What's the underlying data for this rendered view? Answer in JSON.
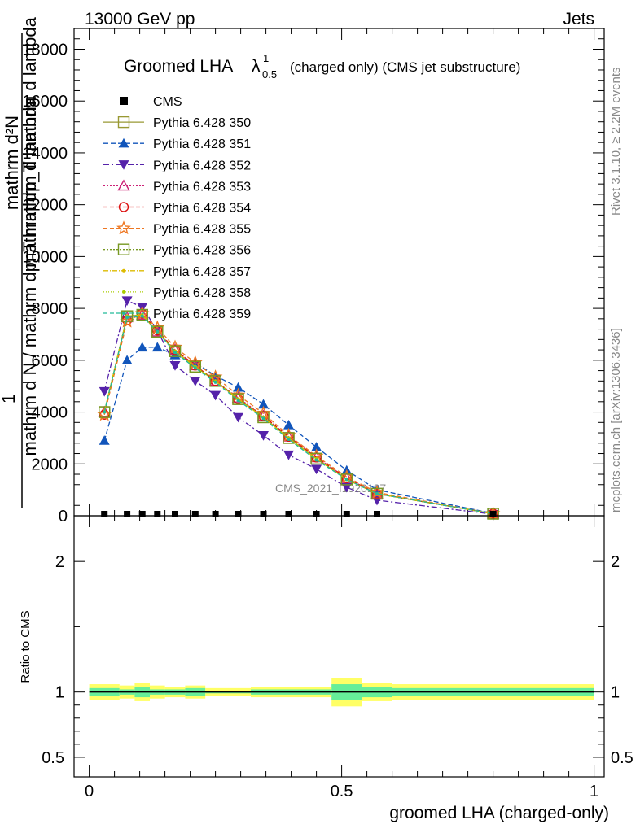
{
  "header": {
    "left": "13000 GeV pp",
    "right": "Jets",
    "rivet": "Rivet 3.1.10, ≥ 2.2M events",
    "mcplots": "mcplots.cern.ch [arXiv:1306.3436]",
    "watermark": "CMS_2021_I1920187"
  },
  "title": {
    "main": "Groomed LHA",
    "lambda": "λ",
    "sup": "1",
    "sub": "0.5",
    "rest": "(charged only) (CMS jet substructure)"
  },
  "ylabel_top": {
    "one": "1",
    "numerator": "mathrm d²N",
    "den1": "mathrm d N / mathrm dp_T mathrm d lambda",
    "den2": "mathrm dp_T mathrm d lambda"
  },
  "ylabel_ratio": "Ratio to CMS",
  "xlabel": "groomed LHA (charged-only)",
  "colors": {
    "cms": "#000000",
    "band_outer": "#ffff66",
    "band_inner": "#66ee99"
  },
  "chart_data": [
    {
      "type": "line",
      "panel": "main",
      "xlim": [
        -0.03,
        1.02
      ],
      "ylim": [
        0,
        18800
      ],
      "y_ticks": [
        0,
        2000,
        4000,
        6000,
        8000,
        10000,
        12000,
        14000,
        16000,
        18000
      ],
      "y_tick_labels": [
        "0",
        "2000",
        "4000",
        "6000",
        "8000",
        "10000",
        "12000",
        "14000",
        "16000",
        "18000"
      ],
      "x": [
        0.03,
        0.075,
        0.105,
        0.135,
        0.17,
        0.21,
        0.25,
        0.295,
        0.345,
        0.395,
        0.45,
        0.51,
        0.57,
        0.8
      ],
      "cms": [
        0,
        0,
        0,
        0,
        0,
        0,
        0,
        0,
        0,
        0,
        0,
        0,
        0,
        0
      ],
      "series": [
        {
          "name": "Pythia 6.428 350",
          "color": "#999933",
          "dash": "",
          "marker": "square-open",
          "values": [
            4000,
            7700,
            7750,
            7100,
            6350,
            5750,
            5200,
            4500,
            3800,
            3000,
            2200,
            1400,
            850,
            80
          ]
        },
        {
          "name": "Pythia 6.428 351",
          "color": "#1155bb",
          "dash": "6,3",
          "marker": "triangle-up",
          "values": [
            2900,
            6000,
            6500,
            6500,
            6200,
            5900,
            5400,
            4950,
            4300,
            3500,
            2650,
            1750,
            1000,
            90
          ]
        },
        {
          "name": "Pythia 6.428 352",
          "color": "#5522aa",
          "dash": "7,3,2,3",
          "marker": "triangle-down",
          "values": [
            4800,
            8300,
            8050,
            7150,
            5800,
            5200,
            4650,
            3800,
            3100,
            2350,
            1800,
            1100,
            600,
            60
          ]
        },
        {
          "name": "Pythia 6.428 353",
          "color": "#cc2277",
          "dash": "2,2",
          "marker": "triangle-open",
          "values": [
            4000,
            7650,
            7750,
            7100,
            6400,
            5800,
            5200,
            4550,
            3850,
            3050,
            2250,
            1450,
            850,
            80
          ]
        },
        {
          "name": "Pythia 6.428 354",
          "color": "#dd1111",
          "dash": "5,3",
          "marker": "circle-open",
          "values": [
            3900,
            7550,
            7800,
            7150,
            6400,
            5800,
            5200,
            4500,
            3850,
            3050,
            2250,
            1450,
            850,
            80
          ]
        },
        {
          "name": "Pythia 6.428 355",
          "color": "#ee7722",
          "dash": "5,3",
          "marker": "star",
          "values": [
            3900,
            7500,
            7800,
            7250,
            6500,
            5900,
            5350,
            4650,
            3950,
            3100,
            2300,
            1500,
            900,
            80
          ]
        },
        {
          "name": "Pythia 6.428 356",
          "color": "#779922",
          "dash": "2,2",
          "marker": "square-open",
          "values": [
            4000,
            7700,
            7750,
            7100,
            6350,
            5750,
            5200,
            4500,
            3800,
            3000,
            2200,
            1400,
            850,
            80
          ]
        },
        {
          "name": "Pythia 6.428 357",
          "color": "#ddbb00",
          "dash": "6,2,1,2",
          "marker": "dot",
          "values": [
            4000,
            7700,
            7750,
            7100,
            6350,
            5750,
            5200,
            4500,
            3800,
            3000,
            2200,
            1400,
            850,
            80
          ]
        },
        {
          "name": "Pythia 6.428 358",
          "color": "#aacc00",
          "dash": "1,2",
          "marker": "dot",
          "values": [
            4000,
            7700,
            7750,
            7100,
            6350,
            5750,
            5200,
            4500,
            3800,
            3000,
            2200,
            1400,
            850,
            80
          ]
        },
        {
          "name": "Pythia 6.428 359",
          "color": "#22bb99",
          "dash": "5,3",
          "marker": "dot",
          "values": [
            4000,
            7650,
            7700,
            7100,
            6300,
            5700,
            5150,
            4450,
            3750,
            2950,
            2150,
            1400,
            850,
            80
          ]
        }
      ]
    },
    {
      "type": "line",
      "panel": "ratio",
      "xlim": [
        -0.03,
        1.02
      ],
      "ylim": [
        0.35,
        2.35
      ],
      "y_ticks": [
        0.5,
        1,
        2
      ],
      "y_tick_labels": [
        "0.5",
        "1",
        "2"
      ],
      "x_ticks": [
        0,
        0.5,
        1
      ],
      "x_tick_labels": [
        "0",
        "0.5",
        "1"
      ],
      "reference": 1,
      "bins": [
        [
          0,
          0.06
        ],
        [
          0.06,
          0.09
        ],
        [
          0.09,
          0.12
        ],
        [
          0.12,
          0.15
        ],
        [
          0.15,
          0.19
        ],
        [
          0.19,
          0.23
        ],
        [
          0.23,
          0.27
        ],
        [
          0.27,
          0.32
        ],
        [
          0.32,
          0.37
        ],
        [
          0.37,
          0.42
        ],
        [
          0.42,
          0.48
        ],
        [
          0.48,
          0.54
        ],
        [
          0.54,
          0.6
        ],
        [
          0.6,
          1.0
        ]
      ],
      "band_outer": [
        0.06,
        0.05,
        0.07,
        0.05,
        0.04,
        0.05,
        0.03,
        0.03,
        0.04,
        0.04,
        0.04,
        0.11,
        0.07,
        0.06
      ],
      "band_inner": [
        0.03,
        0.02,
        0.04,
        0.02,
        0.02,
        0.03,
        0.01,
        0.01,
        0.02,
        0.02,
        0.02,
        0.06,
        0.04,
        0.03
      ]
    }
  ]
}
